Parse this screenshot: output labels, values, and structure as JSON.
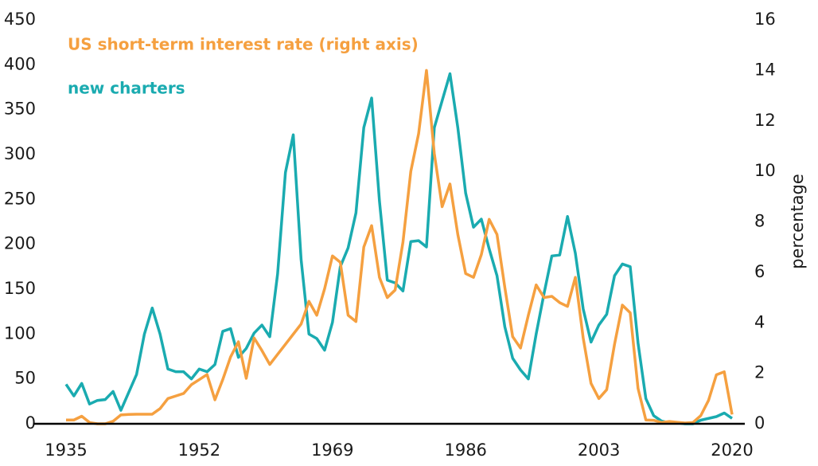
{
  "chart_data": {
    "type": "line",
    "x": [
      1935,
      1936,
      1937,
      1938,
      1939,
      1940,
      1941,
      1942,
      1943,
      1944,
      1945,
      1946,
      1947,
      1948,
      1949,
      1950,
      1951,
      1952,
      1953,
      1954,
      1955,
      1956,
      1957,
      1958,
      1959,
      1960,
      1961,
      1962,
      1963,
      1964,
      1965,
      1966,
      1967,
      1968,
      1969,
      1970,
      1971,
      1972,
      1973,
      1974,
      1975,
      1976,
      1977,
      1978,
      1979,
      1980,
      1981,
      1982,
      1983,
      1984,
      1985,
      1986,
      1987,
      1988,
      1989,
      1990,
      1991,
      1992,
      1993,
      1994,
      1995,
      1996,
      1997,
      1998,
      1999,
      2000,
      2001,
      2002,
      2003,
      2004,
      2005,
      2006,
      2007,
      2008,
      2009,
      2010,
      2011,
      2012,
      2013,
      2014,
      2015,
      2016,
      2017,
      2018,
      2019,
      2020
    ],
    "series": [
      {
        "name": "new charters",
        "color": "#1aabb0",
        "values": [
          44,
          31,
          45,
          22,
          26,
          27,
          36,
          15,
          35,
          55,
          100,
          129,
          100,
          61,
          58,
          58,
          50,
          61,
          58,
          66,
          103,
          106,
          74,
          84,
          101,
          110,
          97,
          167,
          280,
          322,
          183,
          100,
          95,
          82,
          113,
          175,
          196,
          235,
          330,
          363,
          248,
          160,
          157,
          148,
          203,
          204,
          197,
          330,
          360,
          390,
          330,
          257,
          219,
          228,
          195,
          165,
          108,
          73,
          60,
          50,
          100,
          145,
          187,
          188,
          231,
          190,
          128,
          91,
          110,
          122,
          165,
          178,
          175,
          90,
          28,
          9,
          3,
          1,
          1,
          0,
          0,
          4,
          6,
          8,
          12,
          6
        ]
      },
      {
        "name": "US short-term interest rate (right axis)",
        "color": "#f5a040",
        "axis": "y2",
        "values": [
          0.15,
          0.15,
          0.3,
          0.05,
          0.0,
          0.0,
          0.1,
          0.35,
          0.37,
          0.38,
          0.38,
          0.38,
          0.6,
          1.0,
          1.1,
          1.2,
          1.55,
          1.75,
          1.95,
          0.95,
          1.75,
          2.65,
          3.25,
          1.8,
          3.4,
          2.9,
          2.35,
          2.75,
          3.15,
          3.55,
          3.95,
          4.85,
          4.3,
          5.35,
          6.65,
          6.4,
          4.3,
          4.05,
          7.0,
          7.85,
          5.8,
          5.0,
          5.3,
          7.2,
          10.0,
          11.5,
          14.0,
          10.7,
          8.6,
          9.5,
          7.5,
          5.95,
          5.8,
          6.7,
          8.1,
          7.5,
          5.4,
          3.45,
          3.0,
          4.3,
          5.5,
          5.0,
          5.05,
          4.8,
          4.65,
          5.8,
          3.4,
          1.6,
          1.0,
          1.35,
          3.15,
          4.7,
          4.4,
          1.4,
          0.15,
          0.14,
          0.05,
          0.09,
          0.06,
          0.03,
          0.05,
          0.32,
          0.93,
          1.94,
          2.06,
          0.37
        ]
      }
    ],
    "xlim": [
      1935,
      2020
    ],
    "xticks": [
      1935,
      1952,
      1969,
      1986,
      2003,
      2020
    ],
    "ylim": [
      0,
      450
    ],
    "yticks": [
      0,
      50,
      100,
      150,
      200,
      250,
      300,
      350,
      400,
      450
    ],
    "y2lim": [
      0,
      16
    ],
    "y2ticks": [
      0,
      2,
      4,
      6,
      8,
      10,
      12,
      14,
      16
    ],
    "y2label": "percentage",
    "grid": false
  }
}
